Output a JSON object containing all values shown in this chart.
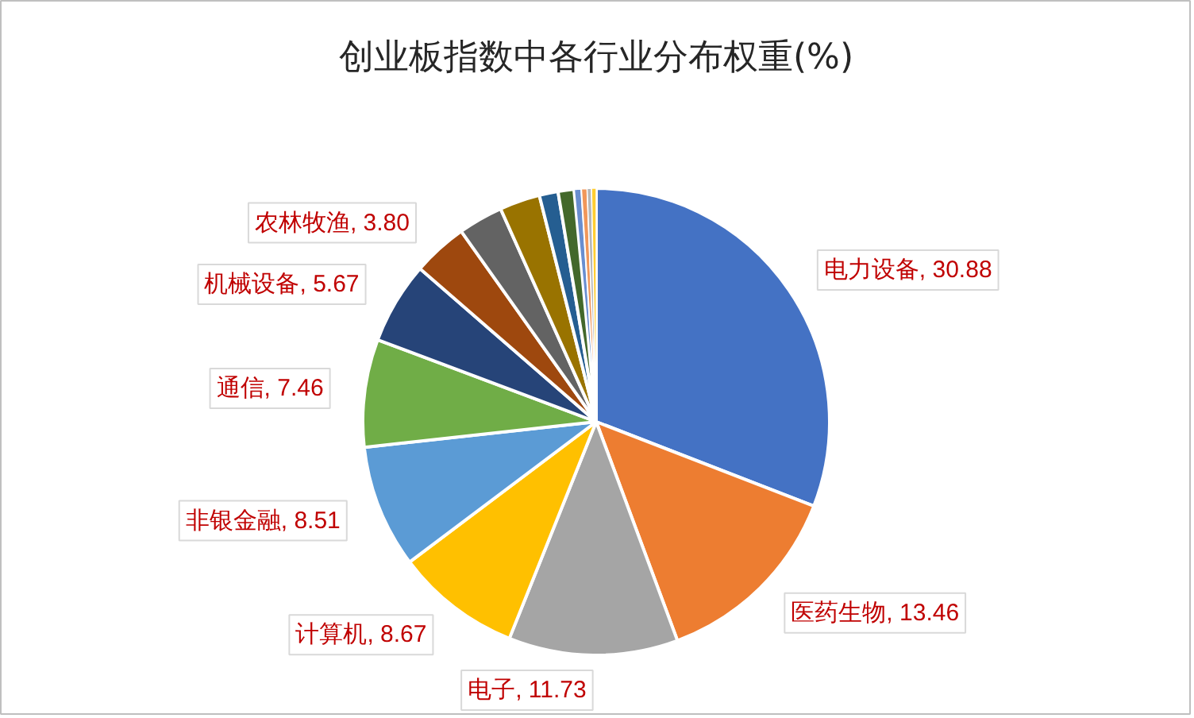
{
  "chart_data": {
    "type": "pie",
    "title": "创业板指数中各行业分布权重(%)",
    "categories": [
      "电力设备",
      "医药生物",
      "电子",
      "计算机",
      "非银金融",
      "通信",
      "机械设备",
      "农林牧渔",
      null,
      null,
      null,
      null,
      null,
      null,
      null,
      null
    ],
    "values": [
      30.88,
      13.46,
      11.73,
      8.67,
      8.51,
      7.46,
      5.67,
      3.8,
      3.1,
      2.8,
      1.3,
      1.1,
      0.5,
      0.4,
      0.3,
      0.32
    ],
    "value_labels": [
      "30.88",
      "13.46",
      "11.73",
      "8.67",
      "8.51",
      "7.46",
      "5.67",
      "3.80",
      null,
      null,
      null,
      null,
      null,
      null,
      null,
      null
    ],
    "colors": [
      "#4472c4",
      "#ed7d31",
      "#a5a5a5",
      "#ffc000",
      "#5b9bd5",
      "#70ad47",
      "#264478",
      "#9e480e",
      "#636363",
      "#997300",
      "#255e91",
      "#43682b",
      "#698ed0",
      "#f1975a",
      "#b7b7b7",
      "#ffcd33"
    ]
  }
}
